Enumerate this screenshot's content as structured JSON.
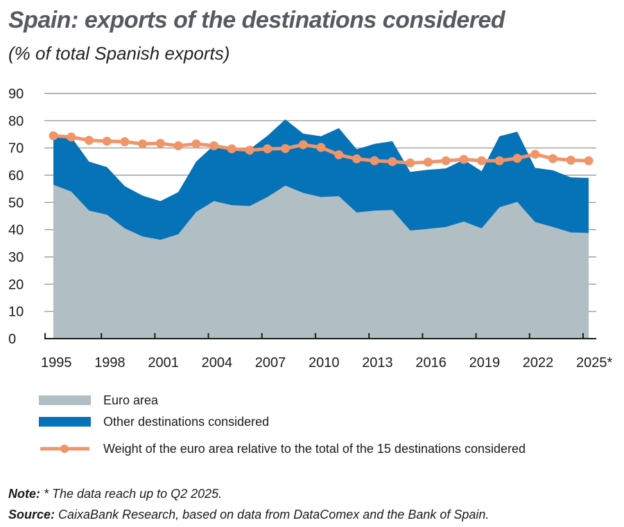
{
  "title": "Spain: exports of the destinations considered",
  "subtitle": "(% of total Spanish exports)",
  "colors": {
    "euro": "#b1bec3",
    "other": "#0673b8",
    "weight": "#f0956a",
    "grid": "#8a8a8a"
  },
  "chart_data": {
    "type": "area",
    "title": "Spain: exports of the destinations considered",
    "subtitle": "(% of total Spanish exports)",
    "x": [
      1995,
      1996,
      1997,
      1998,
      1999,
      2000,
      2001,
      2002,
      2003,
      2004,
      2005,
      2006,
      2007,
      2008,
      2009,
      2010,
      2011,
      2012,
      2013,
      2014,
      2015,
      2016,
      2017,
      2018,
      2019,
      2020,
      2021,
      2022,
      2023,
      2024,
      2025
    ],
    "x_tick_labels": [
      "1995",
      "1998",
      "2001",
      "2004",
      "2007",
      "2010",
      "2013",
      "2016",
      "2019",
      "2022",
      "2025*"
    ],
    "y_ticks": [
      "0",
      "10",
      "20",
      "30",
      "40",
      "50",
      "60",
      "70",
      "80",
      "90"
    ],
    "ylim": [
      0,
      90
    ],
    "grid": true,
    "legend_position": "bottom",
    "series": [
      {
        "name": "Euro area",
        "type": "area",
        "values": [
          56.5,
          54,
          47,
          45.5,
          40.5,
          37.5,
          36.3,
          38.3,
          46.5,
          50.5,
          49,
          48.7,
          52,
          56.2,
          53.5,
          52,
          52.3,
          46.3,
          47,
          47.2,
          39.7,
          40.3,
          41,
          43,
          40.5,
          48.2,
          50.2,
          42.8,
          41,
          39,
          38.8
        ]
      },
      {
        "name": "Other destinations considered",
        "type": "area-stacked",
        "values": [
          18,
          20,
          18,
          17.5,
          15.5,
          15,
          14.2,
          15.5,
          18.5,
          20.5,
          20.5,
          20.8,
          22.5,
          24.3,
          21.8,
          22.3,
          25,
          23.2,
          24.5,
          25.3,
          21.5,
          21.7,
          21.5,
          22.7,
          21,
          26.1,
          25.8,
          19.9,
          20.8,
          20.2,
          20.2
        ]
      },
      {
        "name": "Weight of the euro area relative to the total of the 15 destinations considered",
        "type": "line",
        "values": [
          74.5,
          74,
          72.8,
          72.5,
          72.3,
          71.5,
          71.7,
          70.8,
          71.5,
          70.8,
          69.7,
          69.2,
          69.7,
          69.8,
          71.2,
          70.2,
          67.5,
          66,
          65.3,
          65,
          64.5,
          64.8,
          65.3,
          65.8,
          65.3,
          65.3,
          66.2,
          67.7,
          66.1,
          65.5,
          65.3
        ]
      }
    ]
  },
  "legend": [
    "Euro area",
    "Other destinations considered",
    "Weight of the euro area relative to the total of the 15 destinations considered"
  ],
  "note_label": "Note:",
  "note_text": " * The data reach up to Q2 2025.",
  "source_label": "Source:",
  "source_text": " CaixaBank Research, based on data from DataComex and the Bank of Spain."
}
